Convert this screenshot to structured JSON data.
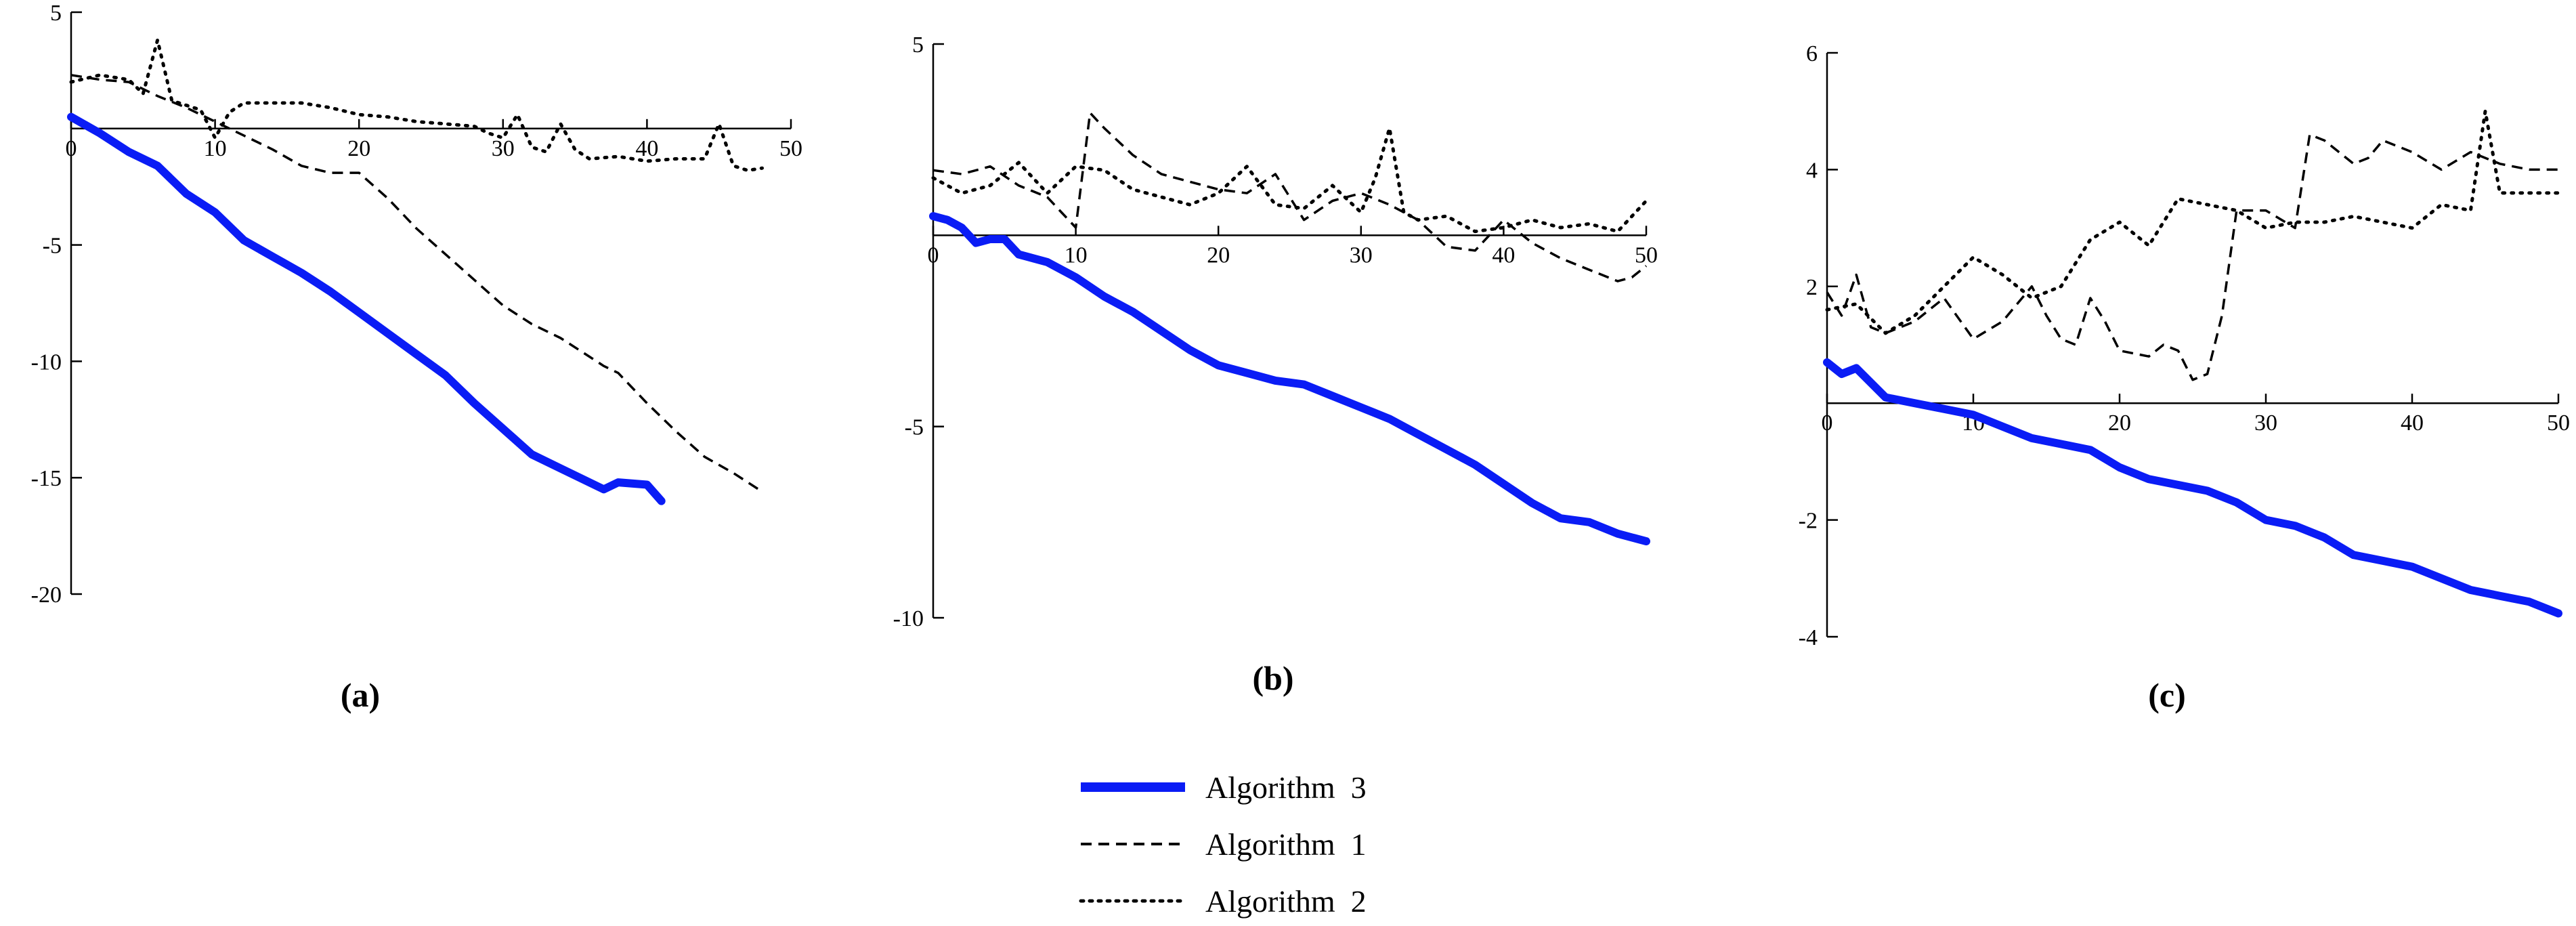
{
  "chart_data": [
    {
      "type": "line",
      "panel_label": "(a)",
      "xlim": [
        0,
        50
      ],
      "ylim": [
        -20,
        5
      ],
      "x_ticks": [
        0,
        10,
        20,
        30,
        40,
        50
      ],
      "y_ticks": [
        5,
        -5,
        -10,
        -15,
        -20
      ],
      "series": [
        {
          "name": "Algorithm 3",
          "x": [
            0,
            2,
            4,
            6,
            8,
            10,
            12,
            14,
            16,
            18,
            20,
            22,
            24,
            26,
            28,
            30,
            32,
            34,
            36,
            37,
            38,
            40,
            41
          ],
          "y": [
            0.5,
            -0.2,
            -1,
            -1.6,
            -2.8,
            -3.6,
            -4.8,
            -5.5,
            -6.2,
            -7,
            -7.9,
            -8.8,
            -9.7,
            -10.6,
            -11.8,
            -12.9,
            -14,
            -14.6,
            -15.2,
            -15.5,
            -15.2,
            -15.3,
            -16
          ]
        },
        {
          "name": "Algorithm 1",
          "x": [
            0,
            2,
            4,
            6,
            8,
            10,
            12,
            14,
            16,
            18,
            20,
            22,
            24,
            26,
            28,
            30,
            32,
            34,
            36,
            37,
            38,
            40,
            42,
            44,
            46,
            48
          ],
          "y": [
            2.3,
            2.1,
            2,
            1.4,
            0.9,
            0.3,
            -0.3,
            -0.9,
            -1.6,
            -1.9,
            -1.9,
            -3,
            -4.3,
            -5.4,
            -6.5,
            -7.6,
            -8.4,
            -9,
            -9.8,
            -10.2,
            -10.5,
            -11.8,
            -13,
            -14.1,
            -14.8,
            -15.6
          ]
        },
        {
          "name": "Algorithm 2",
          "x": [
            0,
            2,
            4,
            5,
            6,
            7,
            8,
            9,
            10,
            11,
            12,
            14,
            16,
            18,
            20,
            22,
            24,
            26,
            28,
            29,
            30,
            31,
            32,
            33,
            34,
            35,
            36,
            38,
            40,
            42,
            44,
            45,
            46,
            47,
            48
          ],
          "y": [
            2,
            2.3,
            2.1,
            1.5,
            3.8,
            1.2,
            1,
            0.8,
            -0.4,
            0.7,
            1.1,
            1.1,
            1.1,
            0.9,
            0.6,
            0.5,
            0.3,
            0.2,
            0.1,
            -0.2,
            -0.4,
            0.6,
            -0.8,
            -1,
            0.2,
            -0.9,
            -1.3,
            -1.2,
            -1.4,
            -1.3,
            -1.3,
            0.2,
            -1.6,
            -1.8,
            -1.7
          ]
        }
      ]
    },
    {
      "type": "line",
      "panel_label": "(b)",
      "xlim": [
        0,
        50
      ],
      "ylim": [
        -10,
        5
      ],
      "x_ticks": [
        0,
        10,
        20,
        30,
        40,
        50
      ],
      "y_ticks": [
        5,
        -5,
        -10
      ],
      "series": [
        {
          "name": "Algorithm 3",
          "x": [
            0,
            1,
            2,
            3,
            4,
            5,
            6,
            8,
            10,
            12,
            14,
            16,
            18,
            20,
            22,
            24,
            26,
            28,
            30,
            32,
            34,
            36,
            38,
            40,
            42,
            44,
            46,
            48,
            50
          ],
          "y": [
            0.5,
            0.4,
            0.2,
            -0.2,
            -0.1,
            -0.1,
            -0.5,
            -0.7,
            -1.1,
            -1.6,
            -2,
            -2.5,
            -3,
            -3.4,
            -3.6,
            -3.8,
            -3.9,
            -4.2,
            -4.5,
            -4.8,
            -5.2,
            -5.6,
            -6,
            -6.5,
            -7,
            -7.4,
            -7.5,
            -7.8,
            -8
          ]
        },
        {
          "name": "Algorithm 1",
          "x": [
            0,
            2,
            4,
            6,
            8,
            9,
            10,
            11,
            12,
            14,
            16,
            18,
            20,
            22,
            24,
            26,
            28,
            30,
            32,
            34,
            36,
            38,
            40,
            42,
            44,
            46,
            48,
            49,
            50
          ],
          "y": [
            1.7,
            1.6,
            1.8,
            1.3,
            1,
            0.6,
            0.2,
            3.2,
            2.8,
            2.1,
            1.6,
            1.4,
            1.2,
            1.1,
            1.6,
            0.4,
            0.9,
            1.1,
            0.8,
            0.4,
            -0.3,
            -0.4,
            0.4,
            -0.2,
            -0.6,
            -0.9,
            -1.2,
            -1.1,
            -0.8
          ]
        },
        {
          "name": "Algorithm 2",
          "x": [
            0,
            2,
            4,
            6,
            8,
            10,
            12,
            14,
            16,
            18,
            20,
            22,
            24,
            26,
            28,
            30,
            31,
            32,
            33,
            34,
            36,
            38,
            40,
            42,
            44,
            46,
            48,
            50
          ],
          "y": [
            1.5,
            1.1,
            1.3,
            1.9,
            1.1,
            1.8,
            1.7,
            1.2,
            1,
            0.8,
            1.1,
            1.8,
            0.8,
            0.7,
            1.3,
            0.6,
            1.5,
            2.8,
            0.6,
            0.4,
            0.5,
            0.1,
            0.2,
            0.4,
            0.2,
            0.3,
            0.1,
            0.9
          ]
        }
      ]
    },
    {
      "type": "line",
      "panel_label": "(c)",
      "xlim": [
        0,
        50
      ],
      "ylim": [
        -4,
        6
      ],
      "x_ticks": [
        0,
        10,
        20,
        30,
        40,
        50
      ],
      "y_ticks": [
        6,
        4,
        2,
        -2,
        -4
      ],
      "series": [
        {
          "name": "Algorithm 3",
          "x": [
            0,
            1,
            2,
            4,
            6,
            8,
            10,
            12,
            14,
            16,
            18,
            20,
            22,
            24,
            26,
            28,
            30,
            32,
            34,
            36,
            38,
            40,
            42,
            44,
            46,
            48,
            50
          ],
          "y": [
            0.7,
            0.5,
            0.6,
            0.1,
            0,
            -0.1,
            -0.2,
            -0.4,
            -0.6,
            -0.7,
            -0.8,
            -1.1,
            -1.3,
            -1.4,
            -1.5,
            -1.7,
            -2,
            -2.1,
            -2.3,
            -2.6,
            -2.7,
            -2.8,
            -3,
            -3.2,
            -3.3,
            -3.4,
            -3.6
          ]
        },
        {
          "name": "Algorithm 1",
          "x": [
            0,
            1,
            2,
            3,
            4,
            6,
            8,
            10,
            12,
            14,
            15,
            16,
            17,
            18,
            19,
            20,
            22,
            23,
            24,
            25,
            26,
            27,
            28,
            30,
            32,
            33,
            34,
            36,
            37,
            38,
            40,
            42,
            44,
            46,
            48,
            50
          ],
          "y": [
            1.9,
            1.5,
            2.2,
            1.3,
            1.2,
            1.4,
            1.8,
            1.1,
            1.4,
            2,
            1.5,
            1.1,
            1,
            1.8,
            1.4,
            0.9,
            0.8,
            1,
            0.9,
            0.4,
            0.5,
            1.5,
            3.3,
            3.3,
            3,
            4.6,
            4.5,
            4.1,
            4.2,
            4.5,
            4.3,
            4,
            4.3,
            4.1,
            4,
            4
          ]
        },
        {
          "name": "Algorithm 2",
          "x": [
            0,
            2,
            4,
            6,
            8,
            10,
            12,
            14,
            16,
            18,
            20,
            22,
            24,
            26,
            28,
            30,
            32,
            34,
            36,
            38,
            40,
            42,
            44,
            45,
            46,
            48,
            50
          ],
          "y": [
            1.6,
            1.7,
            1.2,
            1.5,
            2,
            2.5,
            2.2,
            1.8,
            2,
            2.8,
            3.1,
            2.7,
            3.5,
            3.4,
            3.3,
            3,
            3.1,
            3.1,
            3.2,
            3.1,
            3,
            3.4,
            3.3,
            5,
            3.6,
            3.6,
            3.6
          ]
        }
      ]
    }
  ],
  "legend": {
    "items": [
      {
        "label": "Algorithm  3",
        "style": "solid",
        "color": "#0a1cf5"
      },
      {
        "label": "Algorithm  1",
        "style": "dashed",
        "color": "#000000"
      },
      {
        "label": "Algorithm  2",
        "style": "dotted",
        "color": "#000000"
      }
    ]
  }
}
